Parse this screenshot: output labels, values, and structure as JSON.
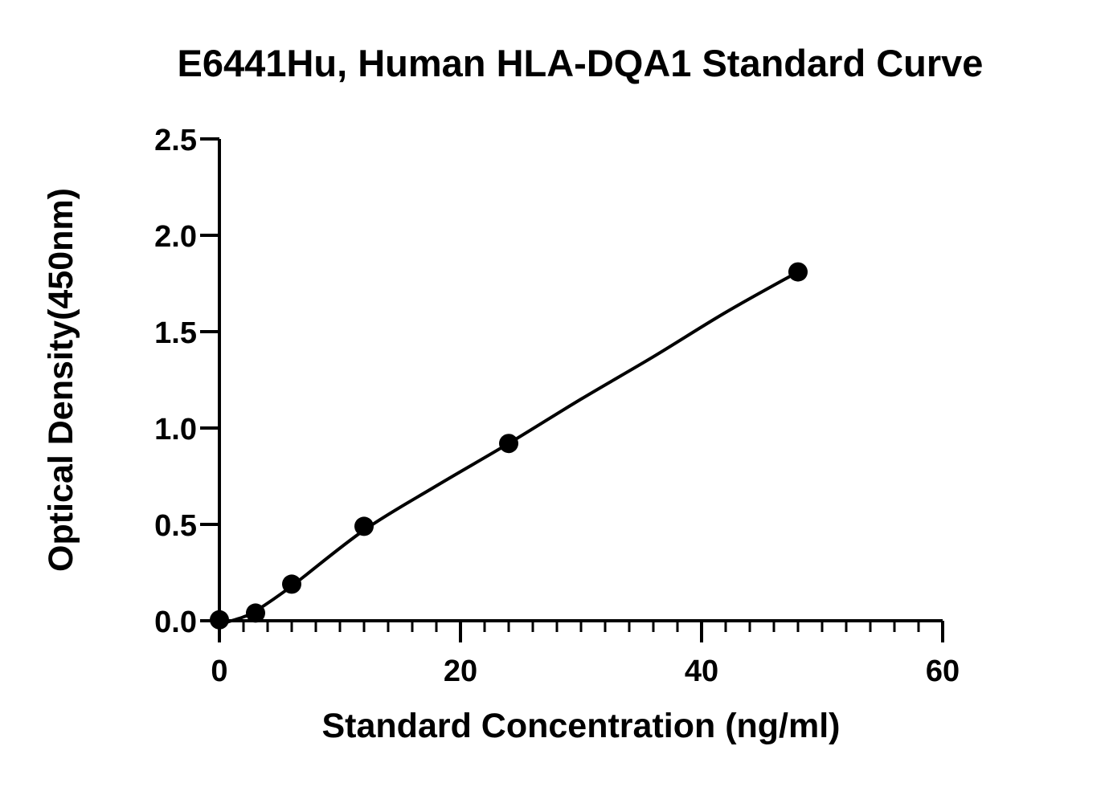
{
  "chart_data": {
    "type": "scatter",
    "title": "E6441Hu, Human HLA-DQA1 Standard Curve",
    "xlabel": "Standard Concentration (ng/ml)",
    "ylabel": "Optical Density(450nm)",
    "xlim": [
      0,
      60
    ],
    "ylim": [
      0,
      2.5
    ],
    "x_ticks": [
      "0",
      "20",
      "40",
      "60"
    ],
    "y_ticks": [
      "0.0",
      "0.5",
      "1.0",
      "1.5",
      "2.0",
      "2.5"
    ],
    "x_minor_tick_step": 2,
    "grid": false,
    "series": [
      {
        "points": [
          {
            "x": 0,
            "y": 0.005
          },
          {
            "x": 3,
            "y": 0.04
          },
          {
            "x": 6,
            "y": 0.19
          },
          {
            "x": 12,
            "y": 0.49
          },
          {
            "x": 24,
            "y": 0.92
          },
          {
            "x": 48,
            "y": 1.81
          }
        ],
        "fit_curve": [
          {
            "x": 0,
            "y": -0.02
          },
          {
            "x": 1,
            "y": 0.0
          },
          {
            "x": 2,
            "y": 0.02
          },
          {
            "x": 3,
            "y": 0.05
          },
          {
            "x": 6,
            "y": 0.18
          },
          {
            "x": 12,
            "y": 0.47
          },
          {
            "x": 18,
            "y": 0.7
          },
          {
            "x": 24,
            "y": 0.92
          },
          {
            "x": 30,
            "y": 1.15
          },
          {
            "x": 36,
            "y": 1.37
          },
          {
            "x": 42,
            "y": 1.6
          },
          {
            "x": 48,
            "y": 1.81
          }
        ],
        "color": "#000000"
      }
    ]
  }
}
